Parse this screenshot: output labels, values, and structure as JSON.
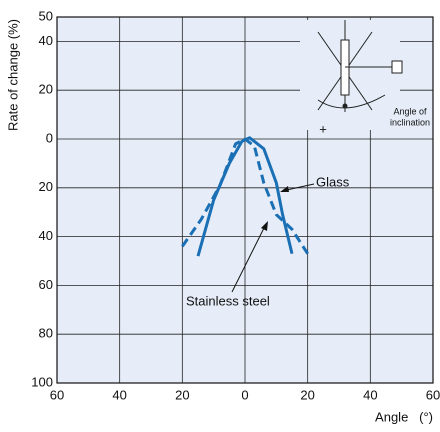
{
  "chart_data": {
    "type": "line",
    "ylabel": "Rate of change (%)",
    "xlabel": "Angle   (°)",
    "xlim": [
      -60,
      60
    ],
    "xticks": [
      {
        "value": -60,
        "label": "60"
      },
      {
        "value": -40,
        "label": "40"
      },
      {
        "value": -20,
        "label": "20"
      },
      0,
      20,
      40,
      60
    ],
    "ylim": [
      -100,
      50
    ],
    "yticks": [
      50,
      40,
      20,
      0,
      {
        "value": -20,
        "label": "20"
      },
      {
        "value": -40,
        "label": "40"
      },
      {
        "value": -60,
        "label": "60"
      },
      {
        "value": -80,
        "label": "80"
      },
      {
        "value": -100,
        "label": "100"
      }
    ],
    "grid": true,
    "series": [
      {
        "name": "Glass",
        "color": "#1a6fb5",
        "dashed": false,
        "x": [
          -15,
          -10,
          -5,
          -1,
          1.5,
          6,
          10,
          12,
          15
        ],
        "values": [
          -48,
          -25,
          -10,
          -1,
          0.5,
          -4,
          -18,
          -31,
          -47
        ]
      },
      {
        "name": "Stainless steel",
        "color": "#1a6fb5",
        "dashed": true,
        "x": [
          -20,
          -14,
          -8,
          -3,
          0,
          3,
          6,
          10,
          15,
          20
        ],
        "values": [
          -44,
          -33,
          -19,
          -2,
          0,
          -3,
          -18,
          -31,
          -37,
          -47
        ]
      }
    ],
    "inset_labels": [
      "Angle of",
      "inclination",
      "+"
    ]
  }
}
